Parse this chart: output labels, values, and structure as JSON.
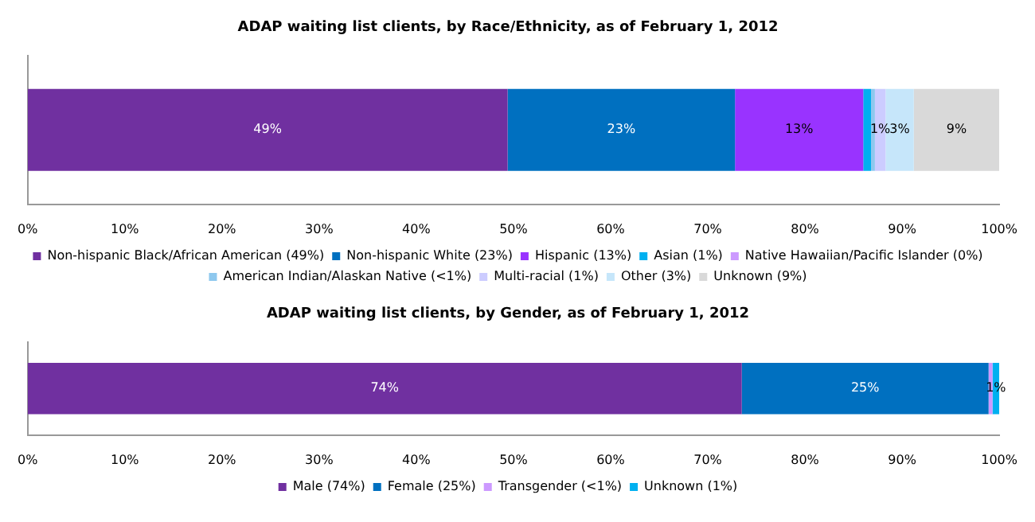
{
  "chart_data": [
    {
      "type": "bar",
      "orientation": "horizontal",
      "stacked": true,
      "title": "ADAP waiting list clients, by Race/Ethnicity, as of February 1, 2012",
      "categories": [
        null
      ],
      "xlim": [
        0,
        100
      ],
      "xticks": [
        {
          "value": 0,
          "label": "0%"
        },
        {
          "value": 10,
          "label": "10%"
        },
        {
          "value": 20,
          "label": "20%"
        },
        {
          "value": 30,
          "label": "30%"
        },
        {
          "value": 40,
          "label": "40%"
        },
        {
          "value": 50,
          "label": "50%"
        },
        {
          "value": 60,
          "label": "60%"
        },
        {
          "value": 70,
          "label": "70%"
        },
        {
          "value": 80,
          "label": "80%"
        },
        {
          "value": 90,
          "label": "90%"
        },
        {
          "value": 100,
          "label": "100%"
        }
      ],
      "tick_labels": "x",
      "grid": false,
      "legend": "bottom",
      "series": [
        {
          "name": "Non-hispanic Black/African American (49%)",
          "color": "#7030a0",
          "values": [
            49.4
          ],
          "value_labels": [
            "49%"
          ]
        },
        {
          "name": "Non-hispanic White (23%)",
          "color": "#0070c0",
          "values": [
            23.4
          ],
          "value_labels": [
            "23%"
          ]
        },
        {
          "name": "Hispanic (13%)",
          "color": "#9933ff",
          "values": [
            13.2
          ],
          "value_labels": [
            "13%"
          ]
        },
        {
          "name": "Asian (1%)",
          "color": "#00b0f0",
          "values": [
            0.8
          ],
          "value_labels": [
            null
          ]
        },
        {
          "name": "Native Hawaiian/Pacific Islander (0%)",
          "color": "#cc99ff",
          "values": [
            0
          ],
          "value_labels": [
            null
          ]
        },
        {
          "name": "American Indian/Alaskan Native (<1%)",
          "color": "#8ec8ee",
          "values": [
            0.4
          ],
          "value_labels": [
            null
          ]
        },
        {
          "name": "Multi-racial (1%)",
          "color": "#ccccff",
          "values": [
            1.1
          ],
          "value_labels": [
            "1%"
          ]
        },
        {
          "name": "Other (3%)",
          "color": "#c6e6fa",
          "values": [
            2.9
          ],
          "value_labels": [
            "3%"
          ]
        },
        {
          "name": "Unknown (9%)",
          "color": "#d9d9d9",
          "values": [
            8.8
          ],
          "value_labels": [
            "9%"
          ]
        }
      ]
    },
    {
      "type": "bar",
      "orientation": "horizontal",
      "stacked": true,
      "title": "ADAP waiting list clients, by Gender, as of February 1, 2012",
      "categories": [
        null
      ],
      "xlim": [
        0,
        100
      ],
      "xticks": [
        {
          "value": 0,
          "label": "0%"
        },
        {
          "value": 10,
          "label": "10%"
        },
        {
          "value": 20,
          "label": "20%"
        },
        {
          "value": 30,
          "label": "30%"
        },
        {
          "value": 40,
          "label": "40%"
        },
        {
          "value": 50,
          "label": "50%"
        },
        {
          "value": 60,
          "label": "60%"
        },
        {
          "value": 70,
          "label": "70%"
        },
        {
          "value": 80,
          "label": "80%"
        },
        {
          "value": 90,
          "label": "90%"
        },
        {
          "value": 100,
          "label": "100%"
        }
      ],
      "tick_labels": "x",
      "grid": false,
      "legend": "bottom",
      "series": [
        {
          "name": "Male (74%)",
          "color": "#7030a0",
          "values": [
            73.5
          ],
          "value_labels": [
            "74%"
          ]
        },
        {
          "name": "Female (25%)",
          "color": "#0070c0",
          "values": [
            25.4
          ],
          "value_labels": [
            "25%"
          ]
        },
        {
          "name": "Transgender (<1%)",
          "color": "#cc99ff",
          "values": [
            0.4
          ],
          "value_labels": [
            null
          ]
        },
        {
          "name": "Unknown (1%)",
          "color": "#00b0f0",
          "values": [
            0.7
          ],
          "value_labels": [
            "1%"
          ]
        }
      ]
    }
  ]
}
